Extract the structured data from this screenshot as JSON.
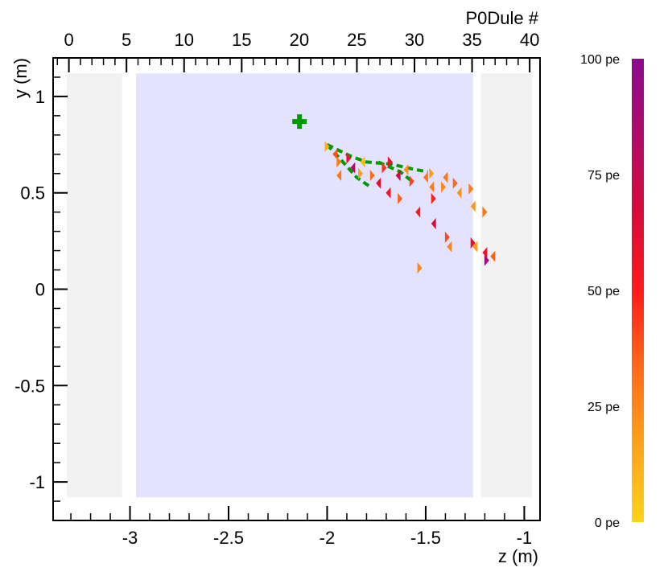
{
  "chart_data": {
    "type": "scatter",
    "title": "",
    "xlabel": "z (m)",
    "ylabel": "y (m)",
    "x2label": "P0Dule #",
    "xlim": [
      -3.39,
      -0.92
    ],
    "ylim": [
      -1.2,
      1.2
    ],
    "x2lim": [
      -1.37,
      40.9
    ],
    "x_ticks": [
      {
        "value": -3,
        "label": "-3"
      },
      {
        "value": -2.5,
        "label": "-2.5"
      },
      {
        "value": -2,
        "label": "-2"
      },
      {
        "value": -1.5,
        "label": "-1.5"
      },
      {
        "value": -1,
        "label": "-1"
      }
    ],
    "y_ticks": [
      {
        "value": 1,
        "label": "1"
      },
      {
        "value": 0.5,
        "label": "0.5"
      },
      {
        "value": 0,
        "label": "0"
      },
      {
        "value": -0.5,
        "label": "-0.5"
      },
      {
        "value": -1,
        "label": "-1"
      }
    ],
    "x2_ticks": [
      {
        "value": 0,
        "label": "0"
      },
      {
        "value": 5,
        "label": "5"
      },
      {
        "value": 10,
        "label": "10"
      },
      {
        "value": 15,
        "label": "15"
      },
      {
        "value": 20,
        "label": "20"
      },
      {
        "value": 25,
        "label": "25"
      },
      {
        "value": 30,
        "label": "30"
      },
      {
        "value": 35,
        "label": "35"
      },
      {
        "value": 40,
        "label": "40"
      }
    ],
    "grid": false,
    "detector_regions": [
      {
        "z0": -3.32,
        "z1": -3.04,
        "y0": -1.08,
        "y1": 1.12,
        "color": "#f2f2f2"
      },
      {
        "z0": -2.97,
        "z1": -1.26,
        "y0": -1.08,
        "y1": 1.12,
        "color": "#e3e3ff"
      },
      {
        "z0": -1.22,
        "z1": -0.96,
        "y0": -1.08,
        "y1": 1.12,
        "color": "#f2f2f2"
      }
    ],
    "vertex": {
      "z": -2.14,
      "y": 0.87,
      "color": "#009900"
    },
    "tracks": [
      {
        "color": "#009900",
        "points": [
          [
            -2.0,
            0.75
          ],
          [
            -1.88,
            0.69
          ],
          [
            -1.8,
            0.66
          ],
          [
            -1.68,
            0.65
          ],
          [
            -1.55,
            0.62
          ],
          [
            -1.49,
            0.61
          ]
        ]
      },
      {
        "color": "#009900",
        "points": [
          [
            -2.0,
            0.75
          ],
          [
            -1.92,
            0.66
          ],
          [
            -1.85,
            0.58
          ],
          [
            -1.78,
            0.53
          ]
        ]
      },
      {
        "color": "#009900",
        "points": [
          [
            -1.74,
            0.66
          ],
          [
            -1.63,
            0.61
          ],
          [
            -1.57,
            0.56
          ]
        ]
      }
    ],
    "hits": [
      {
        "z": -2.0,
        "y": 0.74,
        "pe": 12
      },
      {
        "z": -1.96,
        "y": 0.7,
        "pe": 38
      },
      {
        "z": -1.94,
        "y": 0.66,
        "pe": 28
      },
      {
        "z": -1.94,
        "y": 0.59,
        "pe": 30
      },
      {
        "z": -1.89,
        "y": 0.68,
        "pe": 58
      },
      {
        "z": -1.87,
        "y": 0.63,
        "pe": 80
      },
      {
        "z": -1.83,
        "y": 0.6,
        "pe": 18
      },
      {
        "z": -1.82,
        "y": 0.66,
        "pe": 10
      },
      {
        "z": -1.77,
        "y": 0.59,
        "pe": 32
      },
      {
        "z": -1.74,
        "y": 0.55,
        "pe": 62
      },
      {
        "z": -1.71,
        "y": 0.63,
        "pe": 45
      },
      {
        "z": -1.69,
        "y": 0.5,
        "pe": 55
      },
      {
        "z": -1.68,
        "y": 0.66,
        "pe": 60
      },
      {
        "z": -1.64,
        "y": 0.59,
        "pe": 70
      },
      {
        "z": -1.63,
        "y": 0.47,
        "pe": 35
      },
      {
        "z": -1.6,
        "y": 0.62,
        "pe": 22
      },
      {
        "z": -1.57,
        "y": 0.56,
        "pe": 42
      },
      {
        "z": -1.54,
        "y": 0.4,
        "pe": 52
      },
      {
        "z": -1.53,
        "y": 0.11,
        "pe": 25
      },
      {
        "z": -1.5,
        "y": 0.58,
        "pe": 30
      },
      {
        "z": -1.47,
        "y": 0.6,
        "pe": 18
      },
      {
        "z": -1.47,
        "y": 0.53,
        "pe": 28
      },
      {
        "z": -1.46,
        "y": 0.47,
        "pe": 48
      },
      {
        "z": -1.46,
        "y": 0.34,
        "pe": 65
      },
      {
        "z": -1.41,
        "y": 0.53,
        "pe": 24
      },
      {
        "z": -1.4,
        "y": 0.58,
        "pe": 30
      },
      {
        "z": -1.39,
        "y": 0.27,
        "pe": 40
      },
      {
        "z": -1.38,
        "y": 0.22,
        "pe": 26
      },
      {
        "z": -1.35,
        "y": 0.55,
        "pe": 34
      },
      {
        "z": -1.33,
        "y": 0.5,
        "pe": 22
      },
      {
        "z": -1.27,
        "y": 0.52,
        "pe": 28
      },
      {
        "z": -1.26,
        "y": 0.43,
        "pe": 20
      },
      {
        "z": -1.26,
        "y": 0.24,
        "pe": 60
      },
      {
        "z": -1.25,
        "y": 0.22,
        "pe": 18
      },
      {
        "z": -1.2,
        "y": 0.4,
        "pe": 30
      },
      {
        "z": -1.2,
        "y": 0.19,
        "pe": 58
      },
      {
        "z": -1.19,
        "y": 0.15,
        "pe": 90
      },
      {
        "z": -1.16,
        "y": 0.17,
        "pe": 35
      }
    ],
    "colorbar": {
      "min": 0,
      "max": 100,
      "stops": [
        "#ffd21a",
        "#ffa31a",
        "#ff6a1a",
        "#ff1a1a",
        "#d90a3a",
        "#b00a6a",
        "#8c0a8c"
      ],
      "labels": [
        {
          "value": 0,
          "label": "0 pe"
        },
        {
          "value": 25,
          "label": "25 pe"
        },
        {
          "value": 50,
          "label": "50 pe"
        },
        {
          "value": 75,
          "label": "75 pe"
        },
        {
          "value": 100,
          "label": "100 pe"
        }
      ]
    }
  }
}
